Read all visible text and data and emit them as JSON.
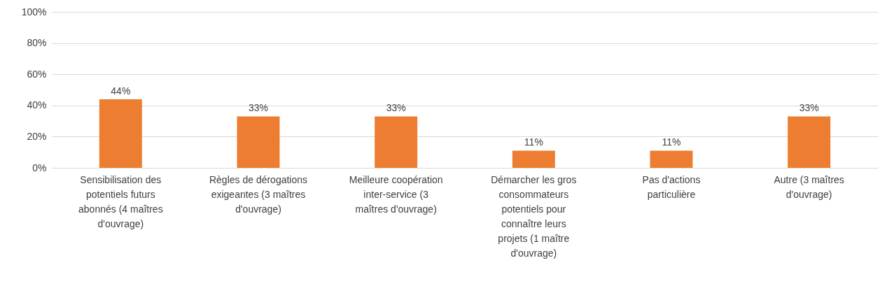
{
  "chart_data": {
    "type": "bar",
    "categories": [
      "Sensibilisation des potentiels futurs abonnés (4 maîtres d'ouvrage)",
      "Règles de dérogations exigeantes (3 maîtres d'ouvrage)",
      "Meilleure coopération inter-service (3 maîtres d'ouvrage)",
      "Démarcher les gros consommateurs potentiels pour connaître leurs projets (1 maître d'ouvrage)",
      "Pas d'actions particulière",
      "Autre (3 maîtres d'ouvrage)"
    ],
    "values": [
      44,
      33,
      33,
      11,
      11,
      33
    ],
    "value_labels": [
      "44%",
      "33%",
      "33%",
      "11%",
      "11%",
      "33%"
    ],
    "color": "#ed7d31",
    "ylim": [
      0,
      100
    ],
    "yticks": [
      {
        "value": 0,
        "label": "0%"
      },
      {
        "value": 20,
        "label": "20%"
      },
      {
        "value": 40,
        "label": "40%"
      },
      {
        "value": 60,
        "label": "60%"
      },
      {
        "value": 80,
        "label": "80%"
      },
      {
        "value": 100,
        "label": "100%"
      }
    ],
    "grid": "y"
  }
}
